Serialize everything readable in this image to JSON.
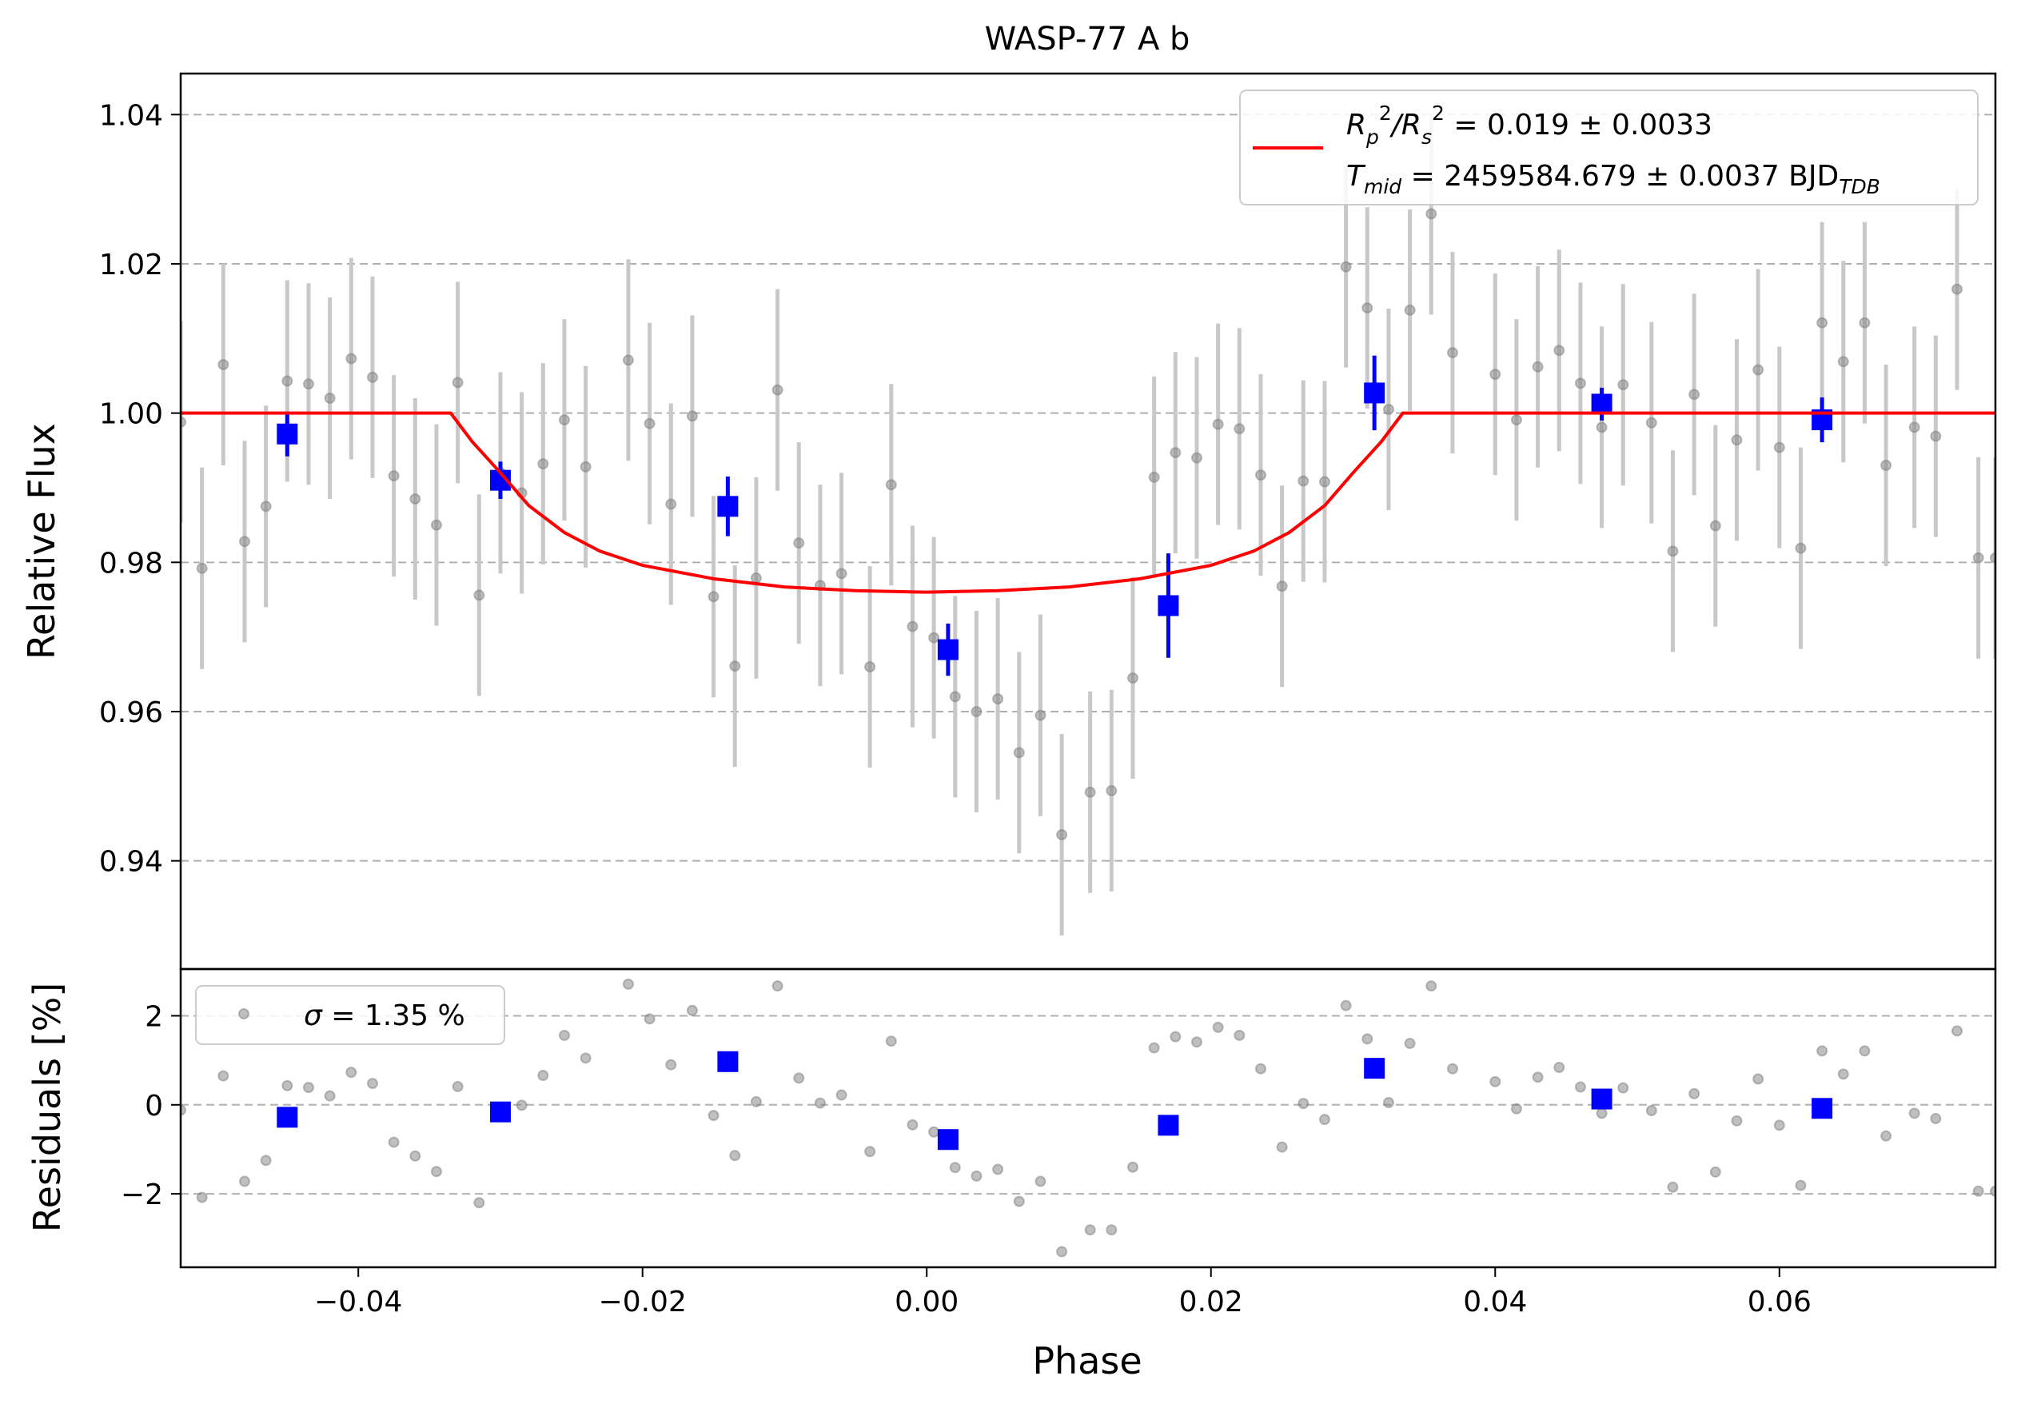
{
  "chart_data": [
    {
      "type": "scatter",
      "title": "WASP-77 A b",
      "xlabel": "",
      "ylabel": "Relative Flux",
      "xlim": [
        -0.0525,
        0.0752
      ],
      "ylim": [
        0.9255,
        1.0455
      ],
      "grid": "y-dashed",
      "yticks": [
        0.94,
        0.96,
        0.98,
        1.0,
        1.02,
        1.04
      ],
      "ytick_labels": [
        "0.94",
        "0.96",
        "0.98",
        "1.00",
        "1.02",
        "1.04"
      ],
      "legend": {
        "placement": "upper-right",
        "line1": {
          "base": "R",
          "sub1": "p",
          "sup1": "2",
          "sep": "/R",
          "sub2": "s",
          "sup2": "2",
          "rest": " = 0.019 ± 0.0033"
        },
        "line2": {
          "base": "T",
          "sub": "mid",
          "rest": " = 2459584.679 ± 0.0037 BJD",
          "rest_sub": "TDB"
        }
      },
      "series": [
        {
          "kind": "raw",
          "color": "#808080",
          "x": [
            -0.0525,
            -0.051,
            -0.0495,
            -0.048,
            -0.0465,
            -0.045,
            -0.0435,
            -0.042,
            -0.0405,
            -0.039,
            -0.0375,
            -0.036,
            -0.0345,
            -0.033,
            -0.0315,
            -0.03,
            -0.0285,
            -0.027,
            -0.0255,
            -0.024,
            -0.021,
            -0.0195,
            -0.018,
            -0.0165,
            -0.015,
            -0.0135,
            -0.012,
            -0.0105,
            -0.009,
            -0.0075,
            -0.006,
            -0.004,
            -0.0025,
            -0.001,
            0.0005,
            0.002,
            0.0035,
            0.005,
            0.0065,
            0.008,
            0.0095,
            0.0115,
            0.013,
            0.0145,
            0.016,
            0.0175,
            0.019,
            0.0205,
            0.022,
            0.0235,
            0.025,
            0.0265,
            0.028,
            0.0295,
            0.031,
            0.0325,
            0.034,
            0.0355,
            0.037,
            0.04,
            0.0415,
            0.043,
            0.0445,
            0.046,
            0.0475,
            0.049,
            0.051,
            0.0525,
            0.054,
            0.0555,
            0.057,
            0.0585,
            0.06,
            0.0615,
            0.063,
            0.0645,
            0.066,
            0.0675,
            0.0695,
            0.071,
            0.0725,
            0.074,
            0.0752
          ],
          "y": [
            0.9988,
            0.9792,
            1.0065,
            0.9828,
            0.9875,
            1.0043,
            1.0039,
            1.002,
            1.0073,
            1.0048,
            0.9916,
            0.9885,
            0.985,
            1.0041,
            0.9756,
            0.992,
            0.9893,
            0.9932,
            0.9991,
            0.9928,
            1.0071,
            0.9986,
            0.9878,
            0.9996,
            0.9754,
            0.9661,
            0.9779,
            1.0031,
            0.9826,
            0.9769,
            0.9785,
            0.966,
            0.9904,
            0.9714,
            0.9699,
            0.962,
            0.96,
            0.9617,
            0.9545,
            0.9595,
            0.9435,
            0.9492,
            0.9494,
            0.9645,
            0.9914,
            0.9947,
            0.994,
            0.9985,
            0.9979,
            0.9917,
            0.9768,
            0.9909,
            0.9908,
            1.0196,
            1.0141,
            1.0005,
            1.0138,
            1.0267,
            1.0081,
            1.0052,
            0.9991,
            1.0062,
            1.0084,
            1.004,
            0.9981,
            1.0038,
            0.9987,
            0.9815,
            1.0025,
            0.9849,
            0.9964,
            1.0058,
            0.9954,
            0.9819,
            1.0121,
            1.0069,
            1.0121,
            0.993,
            0.9981,
            0.9969,
            1.0166,
            0.9806,
            0.9806
          ],
          "yerr": [
            0.0135,
            0.0135,
            0.0135,
            0.0135,
            0.0135,
            0.0135,
            0.0135,
            0.0135,
            0.0135,
            0.0135,
            0.0135,
            0.0135,
            0.0135,
            0.0135,
            0.0135,
            0.0135,
            0.0135,
            0.0135,
            0.0135,
            0.0135,
            0.0135,
            0.0135,
            0.0135,
            0.0135,
            0.0135,
            0.0135,
            0.0135,
            0.0135,
            0.0135,
            0.0135,
            0.0135,
            0.0135,
            0.0135,
            0.0135,
            0.0135,
            0.0135,
            0.0135,
            0.0135,
            0.0135,
            0.0135,
            0.0135,
            0.0135,
            0.0135,
            0.0135,
            0.0135,
            0.0135,
            0.0135,
            0.0135,
            0.0135,
            0.0135,
            0.0135,
            0.0135,
            0.0135,
            0.0135,
            0.0135,
            0.0135,
            0.0135,
            0.0135,
            0.0135,
            0.0135,
            0.0135,
            0.0135,
            0.0135,
            0.0135,
            0.0135,
            0.0135,
            0.0135,
            0.0135,
            0.0135,
            0.0135,
            0.0135,
            0.0135,
            0.0135,
            0.0135,
            0.0135,
            0.0135,
            0.0135,
            0.0135,
            0.0135,
            0.0135,
            0.0135,
            0.0135,
            0.0135
          ]
        },
        {
          "kind": "binned",
          "color": "#0000ff",
          "x": [
            -0.045,
            -0.03,
            -0.014,
            0.0015,
            0.017,
            0.0315,
            0.0475,
            0.063
          ],
          "y": [
            0.9972,
            0.991,
            0.9875,
            0.9683,
            0.9742,
            1.0027,
            1.0012,
            0.9991
          ],
          "yerr": [
            0.003,
            0.0025,
            0.004,
            0.0035,
            0.007,
            0.005,
            0.0022,
            0.003
          ]
        },
        {
          "kind": "model",
          "name": "",
          "color": "#ff0000",
          "x": [
            -0.0525,
            -0.0335,
            -0.032,
            -0.03,
            -0.028,
            -0.0255,
            -0.023,
            -0.02,
            -0.015,
            -0.01,
            -0.005,
            0.0,
            0.005,
            0.01,
            0.015,
            0.02,
            0.023,
            0.0255,
            0.028,
            0.03,
            0.032,
            0.0335,
            0.0752
          ],
          "y": [
            1.0,
            1.0,
            0.9962,
            0.992,
            0.9876,
            0.984,
            0.9815,
            0.9796,
            0.9778,
            0.9767,
            0.9762,
            0.976,
            0.9762,
            0.9767,
            0.9778,
            0.9796,
            0.9815,
            0.984,
            0.9876,
            0.992,
            0.9962,
            1.0,
            1.0
          ]
        }
      ]
    },
    {
      "type": "scatter",
      "xlabel": "Phase",
      "ylabel": "Residuals [%]",
      "xlim": [
        -0.0525,
        0.0752
      ],
      "ylim": [
        -3.65,
        3.05
      ],
      "grid": "y-dashed",
      "xticks": [
        -0.04,
        -0.02,
        0.0,
        0.02,
        0.04,
        0.06
      ],
      "xtick_labels": [
        "−0.04",
        "−0.02",
        "0.00",
        "0.02",
        "0.04",
        "0.06"
      ],
      "yticks": [
        -2,
        0,
        2
      ],
      "ytick_labels": [
        "−2",
        "0",
        "2"
      ],
      "legend": {
        "placement": "upper-left",
        "label_sigma": "σ",
        "label_rest": " = 1.35 %"
      },
      "series": [
        {
          "kind": "raw",
          "color": "#808080",
          "x": [
            -0.0525,
            -0.051,
            -0.0495,
            -0.048,
            -0.0465,
            -0.045,
            -0.0435,
            -0.042,
            -0.0405,
            -0.039,
            -0.0375,
            -0.036,
            -0.0345,
            -0.033,
            -0.0315,
            -0.03,
            -0.0285,
            -0.027,
            -0.0255,
            -0.024,
            -0.021,
            -0.0195,
            -0.018,
            -0.0165,
            -0.015,
            -0.0135,
            -0.012,
            -0.0105,
            -0.009,
            -0.0075,
            -0.006,
            -0.004,
            -0.0025,
            -0.001,
            0.0005,
            0.002,
            0.0035,
            0.005,
            0.0065,
            0.008,
            0.0095,
            0.0115,
            0.013,
            0.0145,
            0.016,
            0.0175,
            0.019,
            0.0205,
            0.022,
            0.0235,
            0.025,
            0.0265,
            0.028,
            0.0295,
            0.031,
            0.0325,
            0.034,
            0.0355,
            0.037,
            0.04,
            0.0415,
            0.043,
            0.0445,
            0.046,
            0.0475,
            0.049,
            0.051,
            0.0525,
            0.054,
            0.0555,
            0.057,
            0.0585,
            0.06,
            0.0615,
            0.063,
            0.0645,
            0.066,
            0.0675,
            0.0695,
            0.071,
            0.0725,
            0.074,
            0.0752
          ],
          "y": [
            -0.12,
            -2.08,
            0.65,
            -1.72,
            -1.25,
            0.43,
            0.39,
            0.2,
            0.73,
            0.48,
            -0.84,
            -1.15,
            -1.5,
            0.41,
            -2.2,
            -0.1,
            -0.01,
            0.66,
            1.56,
            1.05,
            2.71,
            1.93,
            0.9,
            2.12,
            -0.24,
            -1.14,
            0.07,
            2.67,
            0.6,
            0.04,
            0.22,
            -1.05,
            1.43,
            -0.45,
            -0.61,
            -1.41,
            -1.6,
            -1.45,
            -2.17,
            -1.72,
            -3.3,
            -2.81,
            -2.81,
            -1.4,
            1.28,
            1.53,
            1.41,
            1.74,
            1.56,
            0.81,
            -0.95,
            0.03,
            -0.33,
            2.23,
            1.48,
            0.05,
            1.38,
            2.67,
            0.81,
            0.52,
            -0.09,
            0.62,
            0.84,
            0.4,
            -0.19,
            0.38,
            -0.13,
            -1.85,
            0.25,
            -1.51,
            -0.36,
            0.58,
            -0.46,
            -1.81,
            1.21,
            0.69,
            1.21,
            -0.7,
            -0.19,
            -0.31,
            1.66,
            -1.94,
            -1.94
          ]
        },
        {
          "kind": "binned",
          "color": "#0000ff",
          "x": [
            -0.045,
            -0.03,
            -0.014,
            0.0015,
            0.017,
            0.0315,
            0.0475,
            0.063
          ],
          "y": [
            -0.28,
            -0.16,
            0.97,
            -0.78,
            -0.46,
            0.82,
            0.13,
            -0.08
          ]
        }
      ]
    }
  ]
}
